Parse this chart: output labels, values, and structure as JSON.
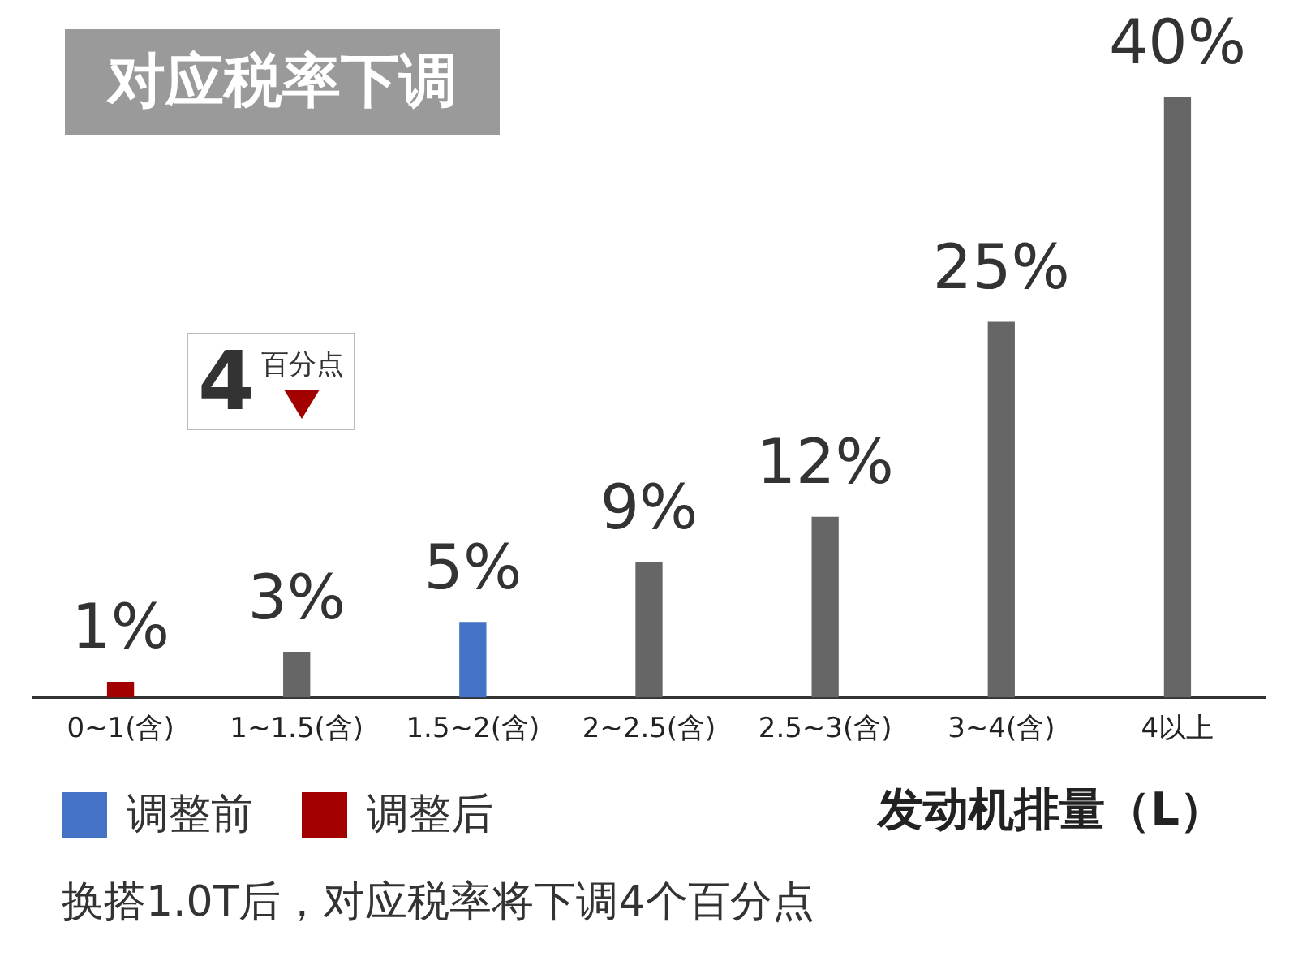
{
  "chart_data": {
    "type": "bar",
    "title": "对应税率下调",
    "xlabel": "发动机排量（L）",
    "categories": [
      "0~1(含)",
      "1~1.5(含)",
      "1.5~2(含)",
      "2~2.5(含)",
      "2.5~3(含)",
      "3~4(含)",
      "4以上"
    ],
    "stacked": true,
    "legend": "bottom left",
    "series": [
      {
        "color": "#666666",
        "values": [
          null,
          3,
          null,
          9,
          12,
          25,
          40
        ],
        "value_labels": [
          null,
          "3%",
          null,
          "9%",
          "12%",
          "25%",
          "40%"
        ]
      },
      {
        "name": "调整前",
        "color": "#4472c4",
        "values": [
          null,
          null,
          5,
          null,
          null,
          null,
          null
        ],
        "value_labels": [
          null,
          null,
          "5%",
          null,
          null,
          null,
          null
        ]
      },
      {
        "name": "调整后",
        "color": "#a30000",
        "values": [
          1,
          null,
          null,
          null,
          null,
          null,
          null
        ],
        "value_labels": [
          "1%",
          null,
          null,
          null,
          null,
          null,
          null
        ]
      }
    ],
    "annotations": [
      "4",
      "百分点",
      "换搭1.0T后，对应税率将下调4个百分点"
    ]
  }
}
